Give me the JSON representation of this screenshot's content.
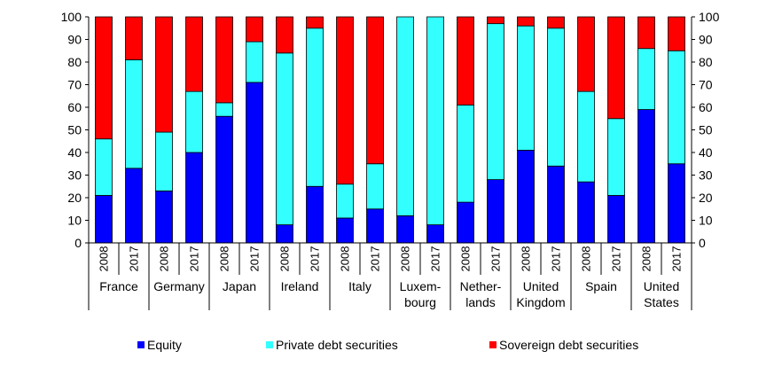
{
  "chart_data": {
    "type": "bar",
    "stacked": true,
    "ylim": [
      0,
      100
    ],
    "yticks": [
      "0",
      "10",
      "20",
      "30",
      "40",
      "50",
      "60",
      "70",
      "80",
      "90",
      "100"
    ],
    "groups": [
      {
        "label": [
          "France"
        ],
        "years": [
          "2008",
          "2017"
        ],
        "equity": [
          21,
          33
        ],
        "private": [
          25,
          48
        ]
      },
      {
        "label": [
          "Germany"
        ],
        "years": [
          "2008",
          "2017"
        ],
        "equity": [
          23,
          40
        ],
        "private": [
          26,
          27
        ]
      },
      {
        "label": [
          "Japan"
        ],
        "years": [
          "2008",
          "2017"
        ],
        "equity": [
          56,
          71
        ],
        "private": [
          6,
          18
        ]
      },
      {
        "label": [
          "Ireland"
        ],
        "years": [
          "2008",
          "2017"
        ],
        "equity": [
          8,
          25
        ],
        "private": [
          76,
          70
        ]
      },
      {
        "label": [
          "Italy"
        ],
        "years": [
          "2008",
          "2017"
        ],
        "equity": [
          11,
          15
        ],
        "private": [
          15,
          20
        ]
      },
      {
        "label": [
          "Luxem-",
          "bourg"
        ],
        "years": [
          "2008",
          "2017"
        ],
        "equity": [
          12,
          8
        ],
        "private": [
          88,
          92
        ]
      },
      {
        "label": [
          "Nether-",
          "lands"
        ],
        "years": [
          "2008",
          "2017"
        ],
        "equity": [
          18,
          28
        ],
        "private": [
          43,
          69
        ]
      },
      {
        "label": [
          "United",
          "Kingdom"
        ],
        "years": [
          "2008",
          "2017"
        ],
        "equity": [
          41,
          34
        ],
        "private": [
          55,
          61
        ]
      },
      {
        "label": [
          "Spain"
        ],
        "years": [
          "2008",
          "2017"
        ],
        "equity": [
          27,
          21
        ],
        "private": [
          40,
          34
        ]
      },
      {
        "label": [
          "United",
          "States"
        ],
        "years": [
          "2008",
          "2017"
        ],
        "equity": [
          59,
          35
        ],
        "private": [
          27,
          50
        ]
      }
    ],
    "series": [
      {
        "key": "equity",
        "name": "Equity",
        "color": "#0000ff"
      },
      {
        "key": "private",
        "name": "Private debt securities",
        "color": "#33ffff"
      },
      {
        "key": "sovereign",
        "name": "Sovereign debt securities",
        "color": "#ff0000"
      }
    ],
    "sovereign_note": "remainder to 100"
  },
  "legend": {
    "equity_label": "Equity",
    "private_label": "Private debt securities",
    "sovereign_label": "Sovereign debt securities"
  }
}
